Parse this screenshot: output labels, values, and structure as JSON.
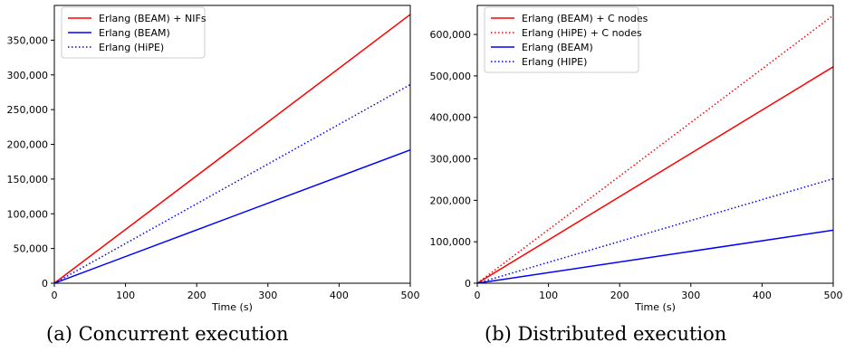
{
  "chart_data": [
    {
      "type": "line",
      "caption": "(a) Concurrent execution",
      "xlabel": "Time (s)",
      "ylabel": "",
      "xlim": [
        0,
        500
      ],
      "ylim": [
        0,
        400000
      ],
      "xticks": [
        0,
        100,
        200,
        300,
        400,
        500
      ],
      "xtick_labels": [
        "0",
        "100",
        "200",
        "300",
        "400",
        "500"
      ],
      "yticks": [
        0,
        50000,
        100000,
        150000,
        200000,
        250000,
        300000,
        350000
      ],
      "ytick_labels": [
        "0",
        "50,000",
        "100,000",
        "150,000",
        "200,000",
        "250,000",
        "300,000",
        "350,000"
      ],
      "grid": false,
      "legend_position": "top-left",
      "series": [
        {
          "name": "Erlang (BEAM) + NIFs",
          "color": "#ff0000",
          "style": "solid",
          "x": [
            0,
            500
          ],
          "y": [
            0,
            387000
          ]
        },
        {
          "name": "Erlang (BEAM)",
          "color": "#0000ff",
          "style": "solid",
          "x": [
            0,
            500
          ],
          "y": [
            0,
            192000
          ]
        },
        {
          "name": "Erlang (HiPE)",
          "color": "#0000ff",
          "style": "dotted",
          "x": [
            0,
            500
          ],
          "y": [
            0,
            286000
          ]
        }
      ]
    },
    {
      "type": "line",
      "caption": "(b) Distributed execution",
      "xlabel": "Time (s)",
      "ylabel": "",
      "xlim": [
        0,
        500
      ],
      "ylim": [
        0,
        670000
      ],
      "xticks": [
        0,
        100,
        200,
        300,
        400,
        500
      ],
      "xtick_labels": [
        "0",
        "100",
        "200",
        "300",
        "400",
        "500"
      ],
      "yticks": [
        0,
        100000,
        200000,
        300000,
        400000,
        500000,
        600000
      ],
      "ytick_labels": [
        "0",
        "100,000",
        "200,000",
        "300,000",
        "400,000",
        "500,000",
        "600,000"
      ],
      "grid": false,
      "legend_position": "top-left",
      "series": [
        {
          "name": "Erlang (BEAM) + C nodes",
          "color": "#ff0000",
          "style": "solid",
          "x": [
            0,
            500
          ],
          "y": [
            0,
            522000
          ]
        },
        {
          "name": "Erlang (HiPE) + C nodes",
          "color": "#ff0000",
          "style": "dotted",
          "x": [
            0,
            500
          ],
          "y": [
            0,
            646000
          ]
        },
        {
          "name": "Erlang (BEAM)",
          "color": "#0000ff",
          "style": "solid",
          "x": [
            0,
            500
          ],
          "y": [
            0,
            128000
          ]
        },
        {
          "name": "Erlang (HIPE)",
          "color": "#0000ff",
          "style": "dotted",
          "x": [
            0,
            500
          ],
          "y": [
            0,
            252000
          ]
        }
      ]
    }
  ]
}
